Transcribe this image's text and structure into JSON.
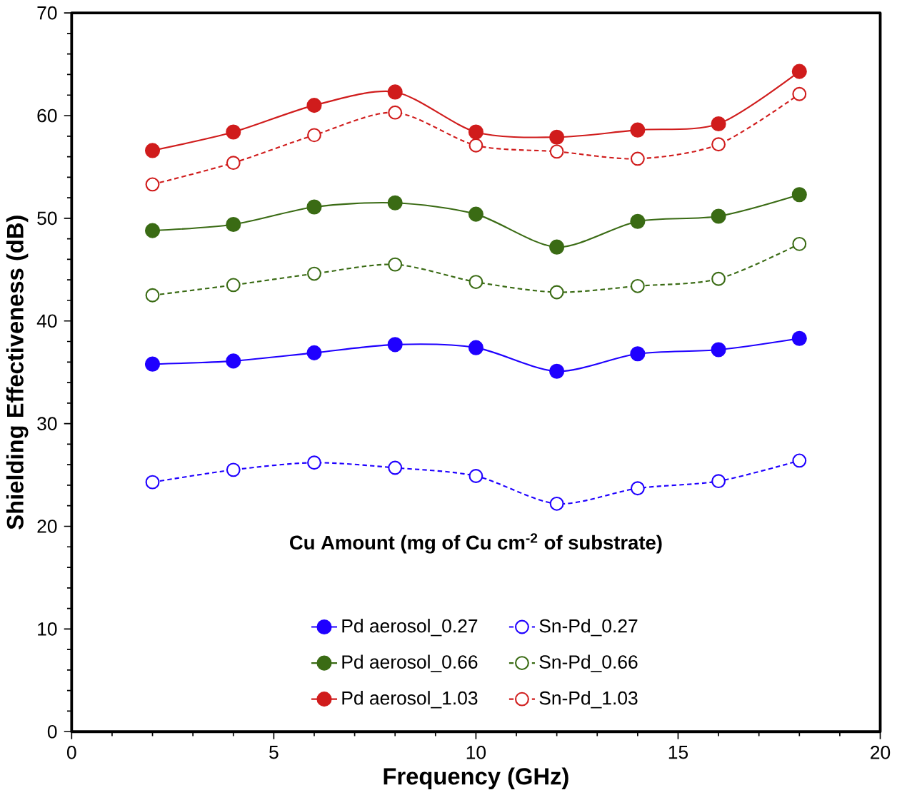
{
  "chart_data": {
    "type": "line",
    "xlabel": "Frequency (GHz)",
    "ylabel": "Shielding Effectiveness (dB)",
    "legend_title": "Cu Amount (mg of Cu cm$^{-2}$ of substrate)",
    "x": [
      2,
      4,
      6,
      8,
      10,
      12,
      14,
      16,
      18
    ],
    "xlim": [
      0,
      20
    ],
    "xticks": [
      0,
      5,
      10,
      15,
      20
    ],
    "ylim": [
      0,
      70
    ],
    "yticks": [
      0,
      10,
      20,
      30,
      40,
      50,
      60,
      70
    ],
    "grid": false,
    "legend": "bottom",
    "marker": "circle",
    "series": [
      {
        "name": "Pd aerosol_0.27",
        "color": "#1f00ff",
        "line_style": "solid",
        "values": [
          35.8,
          36.1,
          36.9,
          37.7,
          37.4,
          35.1,
          36.8,
          37.2,
          38.3
        ]
      },
      {
        "name": "Sn-Pd_0.27",
        "color": "#1f00ff",
        "line_style": "dashed",
        "values": [
          24.3,
          25.5,
          26.2,
          25.7,
          24.9,
          22.2,
          23.7,
          24.4,
          26.4
        ]
      },
      {
        "name": "Pd aerosol_0.66",
        "color": "#3a6b14",
        "line_style": "solid",
        "values": [
          48.8,
          49.4,
          51.1,
          51.5,
          50.4,
          47.2,
          49.7,
          50.2,
          52.3
        ]
      },
      {
        "name": "Sn-Pd_0.66",
        "color": "#3a6b14",
        "line_style": "dashed",
        "values": [
          42.5,
          43.5,
          44.6,
          45.5,
          43.8,
          42.8,
          43.4,
          44.1,
          47.5
        ]
      },
      {
        "name": "Pd aerosol_1.03",
        "color": "#d01c1c",
        "line_style": "solid",
        "values": [
          56.6,
          58.4,
          61.0,
          62.3,
          58.4,
          57.9,
          58.6,
          59.2,
          64.3
        ]
      },
      {
        "name": "Sn-Pd_1.03",
        "color": "#d01c1c",
        "line_style": "dashed",
        "values": [
          53.3,
          55.4,
          58.1,
          60.3,
          57.1,
          56.5,
          55.8,
          57.2,
          62.1
        ]
      }
    ]
  }
}
